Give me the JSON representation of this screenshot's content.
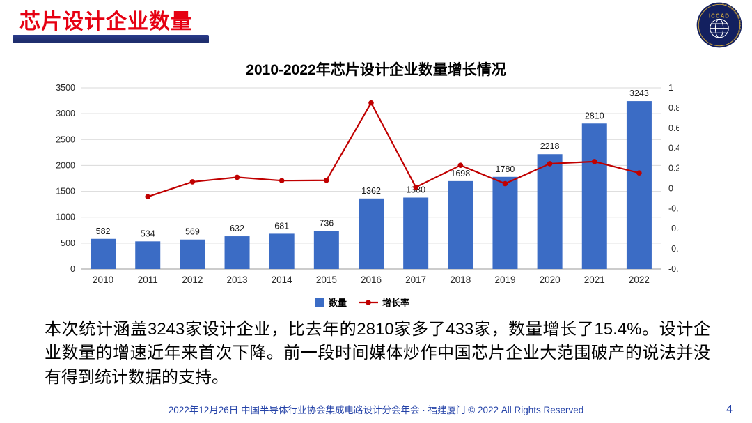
{
  "colors": {
    "title-red": "#E60012",
    "title-bar-navy": "#1F2E6E",
    "footer-blue": "#2543A8",
    "logo-navy": "#13205F",
    "logo-gold": "#C9A23F"
  },
  "slide": {
    "title": "芯片设计企业数量",
    "body_text": "本次统计涵盖3243家设计企业，比去年的2810家多了433家，数量增长了15.4%。设计企业数量的增速近年来首次下降。前一段时间媒体炒作中国芯片企业大范围破产的说法并没有得到统计数据的支持。",
    "footer": "2022年12月26日 中国半导体行业协会集成电路设计分会年会 · 福建厦门 © 2022 All Rights Reserved",
    "page_number": "4"
  },
  "logo": {
    "text": "ICCAD",
    "ring_text": "中国半导体行业协会集成电路设计分会"
  },
  "chart_data": {
    "type": "bar",
    "title": "2010-2022年芯片设计企业数量增长情况",
    "categories": [
      "2010",
      "2011",
      "2012",
      "2013",
      "2014",
      "2015",
      "2016",
      "2017",
      "2018",
      "2019",
      "2020",
      "2021",
      "2022"
    ],
    "series": [
      {
        "name": "数量",
        "type": "bar",
        "color": "#3B6CC5",
        "values": [
          582,
          534,
          569,
          632,
          681,
          736,
          1362,
          1380,
          1698,
          1780,
          2218,
          2810,
          3243
        ]
      },
      {
        "name": "增长率",
        "type": "line",
        "color": "#C00000",
        "values": [
          null,
          -0.082,
          0.066,
          0.111,
          0.078,
          0.081,
          0.85,
          0.013,
          0.23,
          0.048,
          0.246,
          0.267,
          0.154
        ]
      }
    ],
    "left_axis": {
      "min": 0,
      "max": 3500,
      "step": 500
    },
    "right_axis": {
      "min": -0.8,
      "max": 1,
      "step": 0.2
    },
    "grid": true,
    "legend_position": "bottom",
    "legend": [
      "数量",
      "增长率"
    ]
  }
}
